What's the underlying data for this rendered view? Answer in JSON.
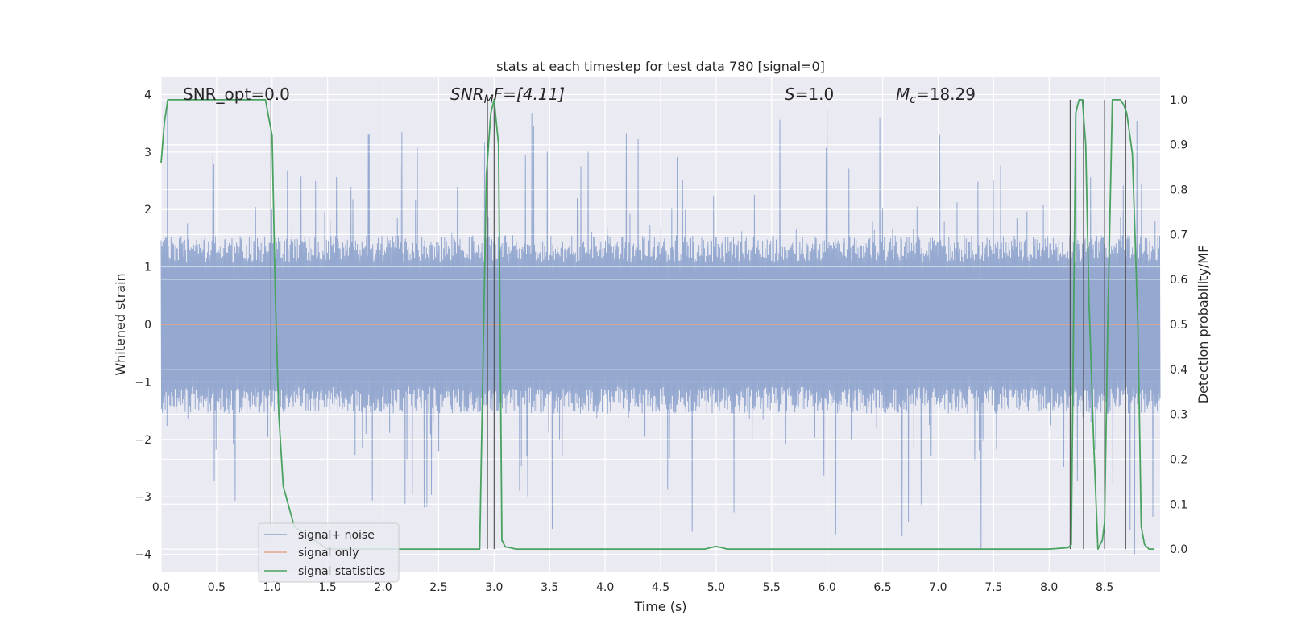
{
  "chart_data": {
    "type": "line",
    "title": "stats at each timestep for test data 780 [signal=0]",
    "xlabel": "Time (s)",
    "ylabel_left": "Whitened strain",
    "ylabel_right": "Detection probability/MF",
    "xlim": [
      0,
      9
    ],
    "ylim_left": [
      -4.3,
      4.3
    ],
    "ylim_right": [
      -0.05,
      1.05
    ],
    "xticks": [
      0.0,
      0.5,
      1.0,
      1.5,
      2.0,
      2.5,
      3.0,
      3.5,
      4.0,
      4.5,
      5.0,
      5.5,
      6.0,
      6.5,
      7.0,
      7.5,
      8.0,
      8.5
    ],
    "xtick_labels": [
      "0.0",
      "0.5",
      "1.0",
      "1.5",
      "2.0",
      "2.5",
      "3.0",
      "3.5",
      "4.0",
      "4.5",
      "5.0",
      "5.5",
      "6.0",
      "6.5",
      "7.0",
      "7.5",
      "8.0",
      "8.5"
    ],
    "yticks_left": [
      -4,
      -3,
      -2,
      -1,
      0,
      1,
      2,
      3,
      4
    ],
    "ytick_labels_left": [
      "−4",
      "−3",
      "−2",
      "−1",
      "0",
      "1",
      "2",
      "3",
      "4"
    ],
    "yticks_right": [
      0.0,
      0.1,
      0.2,
      0.3,
      0.4,
      0.5,
      0.6,
      0.7,
      0.8,
      0.9,
      1.0
    ],
    "ytick_labels_right": [
      "0.0",
      "0.1",
      "0.2",
      "0.3",
      "0.4",
      "0.5",
      "0.6",
      "0.7",
      "0.8",
      "0.9",
      "1.0"
    ],
    "grid": true,
    "legend_position": "lower-left",
    "annotations": {
      "snr_opt": "SNR_opt=0.0",
      "snr_mf_base": "SNR",
      "snr_mf_sub": "M",
      "snr_mf_rest": "F=[4.11]",
      "s_base": "S",
      "s_rest": "=1.0",
      "mc_base": "M",
      "mc_sub": "c",
      "mc_rest": "=18.29"
    },
    "series": [
      {
        "name": "signal+ noise",
        "color": "#8fa4ce",
        "kind": "noise",
        "band_amplitude": 1.55,
        "peak_max": 3.9,
        "peak_min": -4.0
      },
      {
        "name": "signal only",
        "color": "#e8a58a",
        "kind": "constant",
        "value": 0.0
      },
      {
        "name": "signal statistics",
        "color": "#4aa260",
        "axis": "right",
        "x": [
          0.0,
          0.03,
          0.06,
          0.1,
          0.2,
          0.3,
          0.4,
          0.5,
          0.6,
          0.7,
          0.8,
          0.9,
          0.94,
          0.97,
          1.0,
          1.03,
          1.06,
          1.1,
          1.2,
          1.5,
          2.0,
          2.5,
          2.87,
          2.93,
          2.97,
          3.0,
          3.04,
          3.07,
          3.1,
          3.2,
          3.5,
          4.0,
          4.5,
          4.9,
          4.95,
          5.0,
          5.05,
          5.1,
          5.5,
          6.0,
          6.5,
          7.0,
          7.5,
          8.0,
          8.17,
          8.2,
          8.24,
          8.27,
          8.3,
          8.33,
          8.36,
          8.4,
          8.44,
          8.48,
          8.5,
          8.53,
          8.57,
          8.6,
          8.64,
          8.67,
          8.7,
          8.75,
          8.8,
          8.83,
          8.86,
          8.9,
          8.95
        ],
        "y": [
          0.86,
          0.95,
          1.0,
          1.0,
          1.0,
          1.0,
          1.0,
          1.0,
          1.0,
          1.0,
          1.0,
          1.0,
          1.0,
          0.96,
          0.92,
          0.55,
          0.3,
          0.14,
          0.05,
          0.0,
          0.0,
          0.0,
          0.0,
          0.83,
          0.97,
          1.0,
          0.9,
          0.02,
          0.005,
          0.0,
          0.0,
          0.0,
          0.0,
          0.0,
          0.003,
          0.006,
          0.003,
          0.0,
          0.0,
          0.0,
          0.0,
          0.0,
          0.0,
          0.0,
          0.003,
          0.01,
          0.97,
          1.0,
          1.0,
          0.9,
          0.55,
          0.25,
          0.0,
          0.02,
          0.06,
          0.52,
          1.0,
          1.0,
          1.0,
          0.99,
          0.97,
          0.88,
          0.5,
          0.05,
          0.01,
          0.0,
          0.0
        ]
      }
    ],
    "vertical_lines_x": [
      0.99,
      2.94,
      3.0,
      8.19,
      8.31,
      8.5,
      8.69
    ],
    "vertical_line_color": "#555555"
  }
}
